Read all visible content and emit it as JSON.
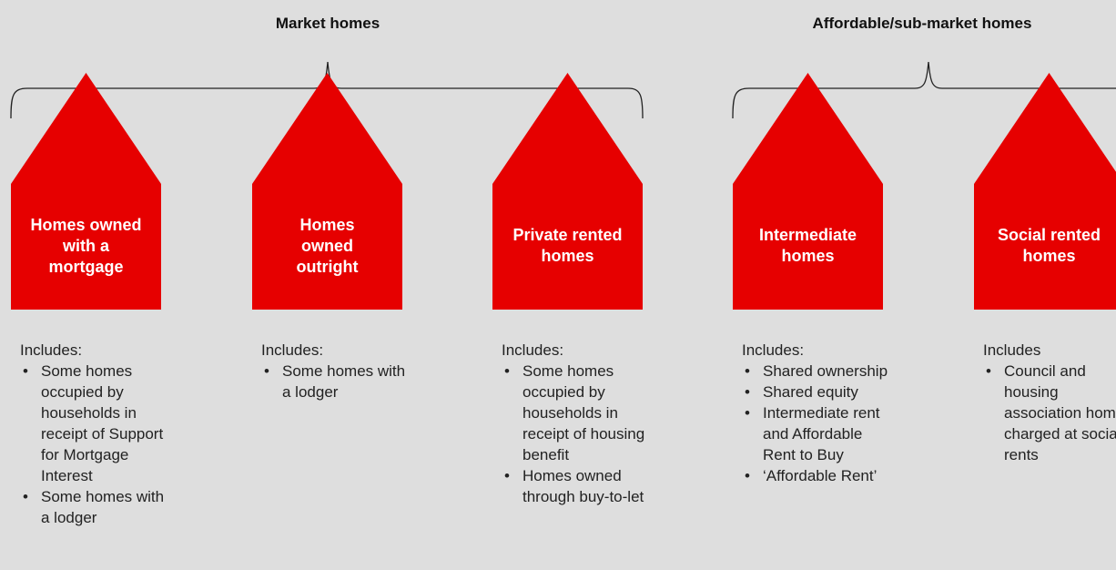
{
  "groups": [
    {
      "label": "Market homes"
    },
    {
      "label": "Affordable/sub-market homes"
    }
  ],
  "houses": [
    {
      "title": "Homes owned with a mortgage",
      "includes": "Includes:",
      "items": [
        "Some homes occupied by households in receipt of Support for Mortgage Interest",
        "Some homes with a lodger"
      ]
    },
    {
      "title": "Homes owned outright",
      "includes": "Includes:",
      "items": [
        "Some homes with a lodger"
      ]
    },
    {
      "title": "Private rented homes",
      "includes": "Includes:",
      "items": [
        "Some homes occupied by households in receipt of housing benefit",
        "Homes owned through buy-to-let"
      ]
    },
    {
      "title": "Intermediate homes",
      "includes": "Includes:",
      "items": [
        "Shared ownership",
        "Shared equity",
        "Intermediate rent and Affordable Rent to Buy",
        "‘Affordable Rent’"
      ]
    },
    {
      "title": "Social rented homes",
      "includes": "Includes",
      "items": [
        "Council and housing association homes charged at social rents"
      ]
    }
  ]
}
